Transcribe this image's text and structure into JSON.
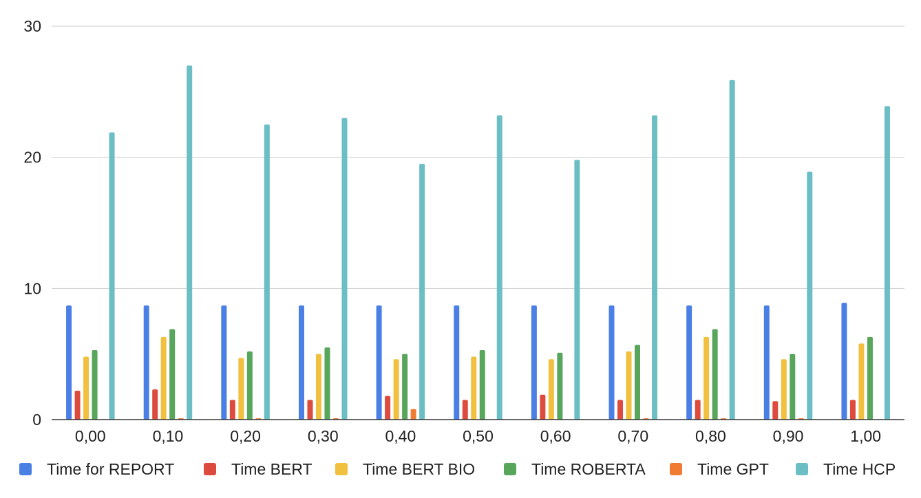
{
  "chart_data": {
    "type": "bar",
    "categories": [
      "0,00",
      "0,10",
      "0,20",
      "0,30",
      "0,40",
      "0,50",
      "0,60",
      "0,70",
      "0,80",
      "0,90",
      "1,00"
    ],
    "ylim": [
      0,
      30
    ],
    "yticks": [
      0,
      10,
      20,
      30
    ],
    "grid": true,
    "legend_position": "bottom",
    "series": [
      {
        "name": "Time for REPORT",
        "color": "#4a7fe5",
        "values": [
          8.7,
          8.7,
          8.7,
          8.7,
          8.7,
          8.7,
          8.7,
          8.7,
          8.7,
          8.7,
          8.9
        ]
      },
      {
        "name": "Time BERT",
        "color": "#dc4b3e",
        "values": [
          2.2,
          2.3,
          1.5,
          1.5,
          1.8,
          1.5,
          1.9,
          1.5,
          1.5,
          1.4,
          1.5
        ]
      },
      {
        "name": "Time BERT BIO",
        "color": "#f2c03f",
        "values": [
          4.8,
          6.3,
          4.7,
          5.0,
          4.6,
          4.8,
          4.6,
          5.2,
          6.3,
          4.6,
          5.8
        ]
      },
      {
        "name": "Time ROBERTA",
        "color": "#58a55c",
        "values": [
          5.3,
          6.9,
          5.2,
          5.5,
          5.0,
          5.3,
          5.1,
          5.7,
          6.9,
          5.0,
          6.3
        ]
      },
      {
        "name": "Time GPT",
        "color": "#f07b33",
        "values": [
          0,
          0.1,
          0.1,
          0.1,
          0.8,
          0,
          0,
          0.1,
          0.1,
          0.1,
          0
        ]
      },
      {
        "name": "Time HCP",
        "color": "#6bbfc4",
        "values": [
          21.9,
          27.0,
          22.5,
          23.0,
          19.5,
          23.2,
          19.8,
          23.2,
          25.9,
          18.9,
          23.9
        ]
      }
    ]
  }
}
